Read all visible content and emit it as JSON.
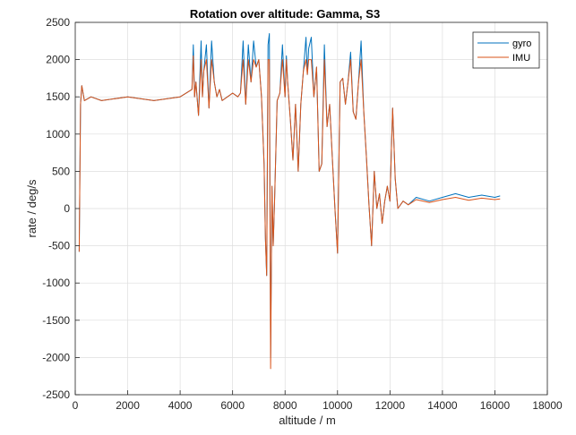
{
  "chart_data": {
    "type": "line",
    "title": "Rotation over altitude: Gamma, S3",
    "xlabel": "altitude / m",
    "ylabel": "rate / deg/s",
    "xlim": [
      0,
      18000
    ],
    "ylim": [
      -2500,
      2500
    ],
    "xticks": [
      0,
      2000,
      4000,
      6000,
      8000,
      10000,
      12000,
      14000,
      16000,
      18000
    ],
    "yticks": [
      -2500,
      -2000,
      -1500,
      -1000,
      -500,
      0,
      500,
      1000,
      1500,
      2000,
      2500
    ],
    "xtick_labels": [
      "0",
      "2000",
      "4000",
      "6000",
      "8000",
      "10000",
      "12000",
      "14000",
      "16000",
      "18000"
    ],
    "ytick_labels": [
      "-2500",
      "-2000",
      "-1500",
      "-1000",
      "-500",
      "0",
      "500",
      "1000",
      "1500",
      "2000",
      "2500"
    ],
    "grid": true,
    "legend_position": "top-right",
    "series": [
      {
        "name": "gyro",
        "color": "#0072BD",
        "x": [
          150,
          200,
          250,
          350,
          600,
          1000,
          2000,
          3000,
          4000,
          4450,
          4500,
          4550,
          4600,
          4700,
          4800,
          4850,
          4900,
          5000,
          5100,
          5200,
          5300,
          5400,
          5500,
          5600,
          6000,
          6200,
          6300,
          6400,
          6500,
          6600,
          6700,
          6800,
          6900,
          7000,
          7100,
          7200,
          7250,
          7300,
          7350,
          7400,
          7450,
          7500,
          7550,
          7600,
          7700,
          7800,
          7900,
          8000,
          8050,
          8100,
          8200,
          8300,
          8400,
          8500,
          8600,
          8700,
          8800,
          8850,
          8900,
          9000,
          9100,
          9200,
          9300,
          9400,
          9500,
          9600,
          9700,
          9800,
          9900,
          10000,
          10100,
          10200,
          10300,
          10400,
          10500,
          10600,
          10700,
          10800,
          10900,
          11000,
          11100,
          11200,
          11300,
          11400,
          11500,
          11600,
          11700,
          11800,
          11900,
          12000,
          12100,
          12200,
          12300,
          12500,
          12700,
          13000,
          13500,
          14000,
          14500,
          15000,
          15500,
          16000,
          16200
        ],
        "y": [
          -580,
          1400,
          1650,
          1450,
          1500,
          1450,
          1500,
          1450,
          1500,
          1600,
          2200,
          1500,
          1700,
          1250,
          2250,
          1500,
          1850,
          2200,
          1350,
          2250,
          1700,
          1500,
          1600,
          1450,
          1550,
          1500,
          1550,
          2250,
          1400,
          2200,
          1700,
          2250,
          1900,
          2000,
          1500,
          600,
          -400,
          -900,
          2200,
          2350,
          -2000,
          300,
          -500,
          100,
          1450,
          1550,
          2200,
          1500,
          2050,
          1700,
          1200,
          650,
          1400,
          500,
          1400,
          1850,
          2300,
          1800,
          2150,
          2300,
          1500,
          1900,
          500,
          600,
          2200,
          1100,
          1400,
          700,
          0,
          -600,
          1700,
          1750,
          1400,
          1700,
          2100,
          1300,
          1200,
          1700,
          2250,
          1300,
          700,
          50,
          -500,
          500,
          0,
          200,
          -200,
          100,
          300,
          100,
          1350,
          400,
          0,
          100,
          50,
          150,
          100,
          150,
          200,
          150,
          180,
          150,
          170
        ]
      },
      {
        "name": "IMU",
        "color": "#D95319",
        "x": [
          150,
          200,
          250,
          350,
          600,
          1000,
          2000,
          3000,
          4000,
          4450,
          4500,
          4550,
          4600,
          4700,
          4800,
          4850,
          4900,
          5000,
          5100,
          5200,
          5300,
          5400,
          5500,
          5600,
          6000,
          6200,
          6300,
          6400,
          6500,
          6600,
          6700,
          6800,
          6900,
          7000,
          7100,
          7200,
          7250,
          7300,
          7350,
          7400,
          7450,
          7500,
          7550,
          7600,
          7700,
          7800,
          7900,
          8000,
          8050,
          8100,
          8200,
          8300,
          8400,
          8500,
          8600,
          8700,
          8800,
          8850,
          8900,
          9000,
          9100,
          9200,
          9300,
          9400,
          9500,
          9600,
          9700,
          9800,
          9900,
          10000,
          10100,
          10200,
          10300,
          10400,
          10500,
          10600,
          10700,
          10800,
          10900,
          11000,
          11100,
          11200,
          11300,
          11400,
          11500,
          11600,
          11700,
          11800,
          11900,
          12000,
          12100,
          12200,
          12300,
          12500,
          12700,
          13000,
          13500,
          14000,
          14500,
          15000,
          15500,
          16000,
          16200
        ],
        "y": [
          -580,
          1400,
          1650,
          1450,
          1500,
          1450,
          1500,
          1450,
          1500,
          1600,
          2050,
          1500,
          1700,
          1250,
          2000,
          1500,
          1850,
          2000,
          1350,
          2000,
          1700,
          1500,
          1600,
          1450,
          1550,
          1500,
          1550,
          2000,
          1400,
          2000,
          1700,
          2000,
          1900,
          2000,
          1500,
          600,
          -400,
          -900,
          2000,
          2000,
          -2150,
          300,
          -500,
          100,
          1450,
          1550,
          2000,
          1500,
          2000,
          1700,
          1200,
          650,
          1400,
          500,
          1400,
          1850,
          2000,
          1800,
          2000,
          2000,
          1500,
          1900,
          500,
          600,
          2000,
          1100,
          1400,
          700,
          0,
          -600,
          1700,
          1750,
          1400,
          1700,
          2000,
          1300,
          1200,
          1700,
          2000,
          1300,
          700,
          50,
          -500,
          500,
          0,
          200,
          -200,
          100,
          300,
          100,
          1350,
          400,
          0,
          100,
          50,
          120,
          80,
          120,
          150,
          110,
          140,
          120,
          130
        ]
      }
    ]
  }
}
